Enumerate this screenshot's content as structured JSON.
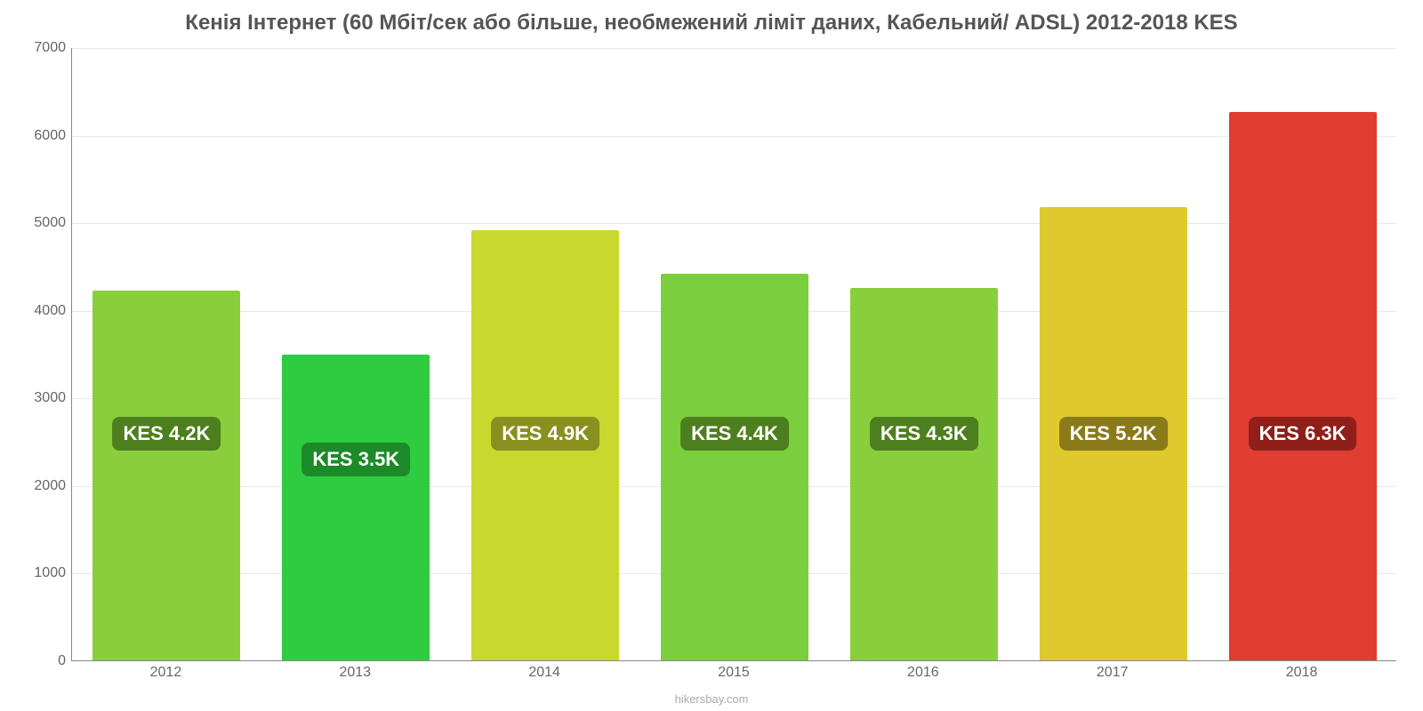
{
  "chart": {
    "type": "bar",
    "title": "Кенія Інтернет (60 Мбіт/сек або більше, необмежений ліміт даних, Кабельний/ ADSL) 2012-2018 KES",
    "title_fontsize": 24,
    "title_color": "#555555",
    "background_color": "#ffffff",
    "grid_color": "#e8e8e8",
    "axis_color": "#888888",
    "tick_label_color": "#666666",
    "tick_label_fontsize": 16,
    "ylim": [
      0,
      7000
    ],
    "ytick_step": 1000,
    "yticks": [
      {
        "value": 0,
        "label": "0"
      },
      {
        "value": 1000,
        "label": "1000"
      },
      {
        "value": 2000,
        "label": "2000"
      },
      {
        "value": 3000,
        "label": "3000"
      },
      {
        "value": 4000,
        "label": "4000"
      },
      {
        "value": 5000,
        "label": "5000"
      },
      {
        "value": 6000,
        "label": "6000"
      },
      {
        "value": 7000,
        "label": "7000"
      }
    ],
    "categories": [
      "2012",
      "2013",
      "2014",
      "2015",
      "2016",
      "2017",
      "2018"
    ],
    "bars": [
      {
        "year": "2012",
        "value": 4220,
        "color": "#89cf3d",
        "label": "KES 4.2K",
        "label_bg": "#4d7f1e",
        "label_color": "#ffffff"
      },
      {
        "year": "2013",
        "value": 3490,
        "color": "#2ecc40",
        "label": "KES 3.5K",
        "label_bg": "#1d8a29",
        "label_color": "#ffffff"
      },
      {
        "year": "2014",
        "value": 4910,
        "color": "#c9d82f",
        "label": "KES 4.9K",
        "label_bg": "#8a901e",
        "label_color": "#ffffff"
      },
      {
        "year": "2015",
        "value": 4410,
        "color": "#7bcf3d",
        "label": "KES 4.4K",
        "label_bg": "#4d7f1e",
        "label_color": "#ffffff"
      },
      {
        "year": "2016",
        "value": 4250,
        "color": "#89cf3d",
        "label": "KES 4.3K",
        "label_bg": "#4d7f1e",
        "label_color": "#ffffff"
      },
      {
        "year": "2017",
        "value": 5170,
        "color": "#e0c92d",
        "label": "KES 5.2K",
        "label_bg": "#8a7a1a",
        "label_color": "#ffffff"
      },
      {
        "year": "2018",
        "value": 6260,
        "color": "#e03c31",
        "label": "KES 6.3K",
        "label_bg": "#8f1f18",
        "label_color": "#ffffff"
      }
    ],
    "bar_width_ratio": 0.78,
    "bar_label_fontsize": 22,
    "bar_label_y_value": 2600,
    "attribution": "hikersbay.com",
    "attribution_color": "#aaaaaa",
    "attribution_fontsize": 13
  }
}
